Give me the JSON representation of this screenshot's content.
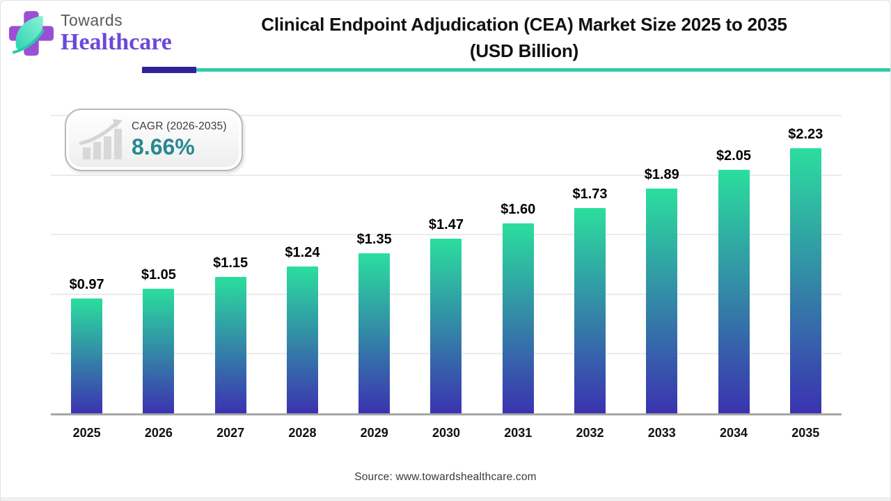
{
  "brand": {
    "name_top": "Towards",
    "name_bottom": "Healthcare",
    "colors": {
      "cross": "#9c4fd4",
      "leaf_light": "#8ff0d8",
      "leaf_dark": "#2bd4b0",
      "towards_text": "#58595b",
      "healthcare_text": "#6b48d8"
    }
  },
  "header": {
    "title_line1": "Clinical Endpoint Adjudication (CEA) Market Size 2025 to 2035",
    "title_line2": "(USD Billion)"
  },
  "accent_colors": {
    "divider_purple": "#31219c",
    "divider_teal": "#2fcba7",
    "cagr_value_color": "#27898f"
  },
  "cagr_badge": {
    "label": "CAGR (2026-2035)",
    "value": "8.66%",
    "icon": "bar-chart-trend-icon"
  },
  "chart_data": {
    "type": "bar",
    "title": "Clinical Endpoint Adjudication (CEA) Market Size 2025 to 2035 (USD Billion)",
    "unit": "USD Billion",
    "categories": [
      "2025",
      "2026",
      "2027",
      "2028",
      "2029",
      "2030",
      "2031",
      "2032",
      "2033",
      "2034",
      "2035"
    ],
    "values": [
      0.97,
      1.05,
      1.15,
      1.24,
      1.35,
      1.47,
      1.6,
      1.73,
      1.89,
      2.05,
      2.23
    ],
    "labels": [
      "$0.97",
      "$1.05",
      "$1.15",
      "$1.24",
      "$1.35",
      "$1.47",
      "$1.60",
      "$1.73",
      "$1.89",
      "$2.05",
      "$2.23"
    ],
    "ylim": [
      0,
      2.5
    ],
    "gridline_step": 0.5,
    "grid": true,
    "legend_position": "none",
    "colors": {
      "bar_gradient_top": "#2bde9e",
      "bar_gradient_bottom": "#3b32b0",
      "gridline": "#ebebeb",
      "axis": "#a6a6a6"
    }
  },
  "footer": {
    "source": "Source: www.towardshealthcare.com"
  }
}
